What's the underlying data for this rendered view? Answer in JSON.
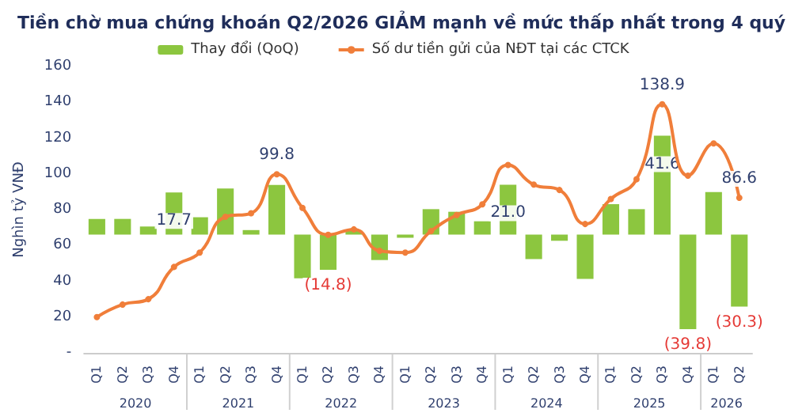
{
  "chart_data": {
    "type": "bar",
    "title": "Tiền chờ mua chứng khoán Q2/2026 GIẢM mạnh về mức thấp nhất trong 4 quý",
    "ylabel": "Nghìn tỷ VNĐ",
    "categories": [
      "Q1",
      "Q2",
      "Q3",
      "Q4",
      "Q1",
      "Q2",
      "Q3",
      "Q4",
      "Q1",
      "Q2",
      "Q3",
      "Q4",
      "Q1",
      "Q2",
      "Q3",
      "Q4",
      "Q1",
      "Q2",
      "Q3",
      "Q4",
      "Q1",
      "Q2",
      "Q3",
      "Q4",
      "Q1",
      "Q2"
    ],
    "annotations": [
      "2020",
      "2021",
      "2022",
      "2023",
      "2024",
      "2025",
      "2026"
    ],
    "series": [
      {
        "name": "Thay đổi (QoQ)",
        "axis": "y2",
        "color": "#8cc63f",
        "values": [
          6.6,
          6.6,
          3.4,
          17.7,
          7.3,
          19.4,
          1.9,
          20.9,
          -18.4,
          -14.8,
          1.7,
          -10.7,
          -1.3,
          10.7,
          9.6,
          5.6,
          21.0,
          -10.3,
          -2.6,
          -18.6,
          12.8,
          10.7,
          41.6,
          -39.8,
          17.9,
          -30.3
        ],
        "value_labels": [
          null,
          null,
          null,
          "17.7",
          null,
          null,
          null,
          null,
          null,
          "(14.8)",
          null,
          null,
          null,
          null,
          null,
          null,
          "21.0",
          null,
          null,
          null,
          null,
          null,
          "41.6",
          "(39.8)",
          null,
          "(30.3)"
        ]
      },
      {
        "name": "Số dư tiền gửi của NĐT tại các CTCK",
        "type": "line",
        "color": "#f07e3a",
        "marker": "circle",
        "values": [
          20,
          27,
          30,
          48,
          56,
          76,
          78,
          99.8,
          81,
          66,
          69,
          57,
          56,
          68,
          77,
          83,
          105,
          94,
          91,
          72,
          86,
          97,
          138.9,
          99,
          117,
          86.6
        ],
        "value_labels": [
          null,
          null,
          null,
          null,
          null,
          null,
          null,
          "99.8",
          null,
          null,
          null,
          null,
          null,
          null,
          null,
          null,
          null,
          null,
          null,
          null,
          null,
          null,
          "138.9",
          null,
          null,
          "86.6"
        ]
      }
    ],
    "ylim": [
      0,
      160
    ],
    "yticks": [
      {
        "value": 0,
        "label": "-"
      },
      20,
      40,
      60,
      80,
      100,
      120,
      140,
      160
    ],
    "legend": "top",
    "grid": false
  }
}
